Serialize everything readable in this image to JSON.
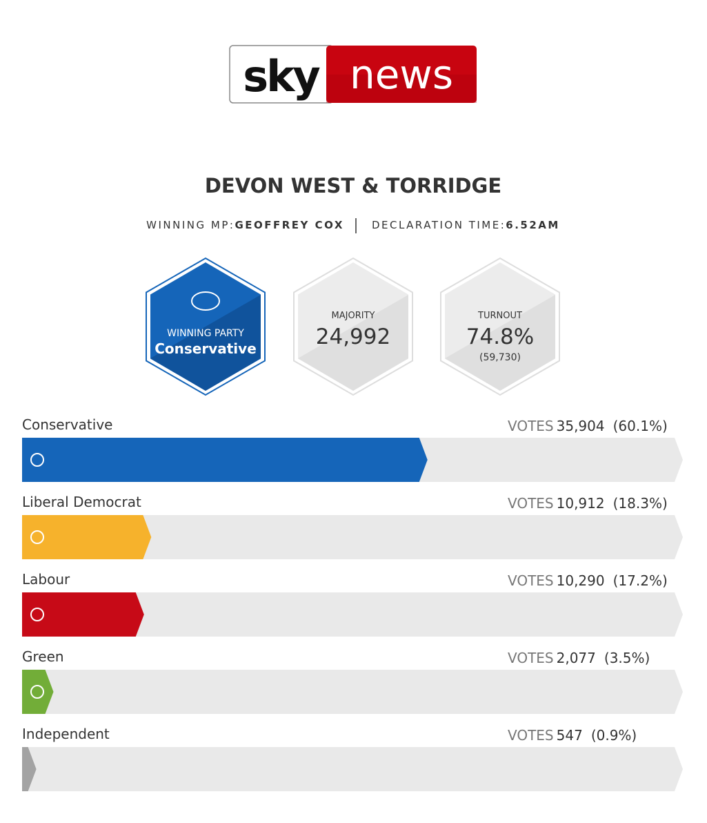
{
  "logo": {
    "left": "sky",
    "right": "news"
  },
  "header": {
    "title": "DEVON WEST & TORRIDGE",
    "winning_mp_label": "WINNING MP:",
    "winning_mp": "GEOFFREY COX",
    "declaration_label": "DECLARATION TIME:",
    "declaration_time": "6.52AM"
  },
  "stats": {
    "winning_party": {
      "label": "WINNING PARTY",
      "value": "Conservative"
    },
    "majority": {
      "label": "MAJORITY",
      "value": "24,992"
    },
    "turnout": {
      "label": "TURNOUT",
      "value": "74.8%",
      "detail": "(59,730)"
    }
  },
  "results": {
    "votes_label": "VOTES",
    "rows": [
      {
        "party": "Conservative",
        "votes": "35,904",
        "share": 60.1,
        "share_label": "(60.1%)",
        "color": "#1565b9"
      },
      {
        "party": "Liberal Democrat",
        "votes": "10,912",
        "share": 18.3,
        "share_label": "(18.3%)",
        "color": "#f6b22c"
      },
      {
        "party": "Labour",
        "votes": "10,290",
        "share": 17.2,
        "share_label": "(17.2%)",
        "color": "#c70a17"
      },
      {
        "party": "Green",
        "votes": "2,077",
        "share": 3.5,
        "share_label": "(3.5%)",
        "color": "#72ad38"
      },
      {
        "party": "Independent",
        "votes": "547",
        "share": 0.9,
        "share_label": "(0.9%)",
        "color": "#a3a3a3"
      }
    ]
  }
}
